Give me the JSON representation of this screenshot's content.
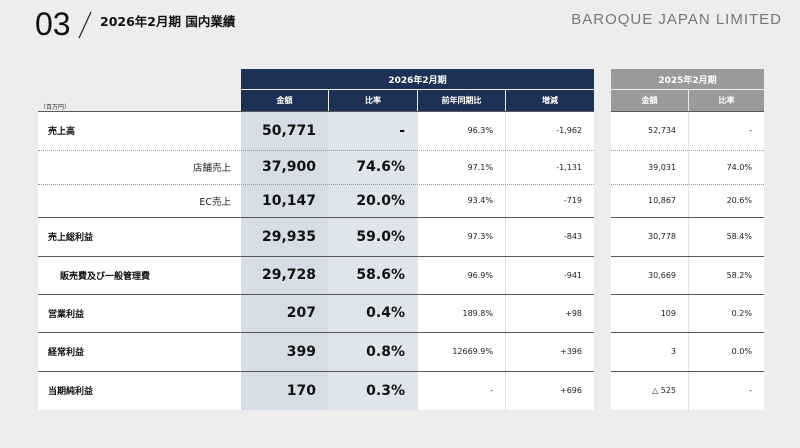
{
  "header": {
    "slide_number": "03",
    "title": "2026年2月期 国内業績",
    "company": "BAROQUE JAPAN LIMITED"
  },
  "table": {
    "unit": "（百万円）",
    "current_period": "2026年2月期",
    "previous_period": "2025年2月期",
    "columns_current": [
      "金額",
      "比率",
      "前年同期比",
      "増減"
    ],
    "columns_previous": [
      "金額",
      "比率"
    ],
    "rows": [
      {
        "label": "売上高",
        "indent": false,
        "amount": "50,771",
        "ratio": "-",
        "yoy": "96.3%",
        "change": "-1,962",
        "prev_amount": "52,734",
        "prev_ratio": "-"
      },
      {
        "label": "店舗売上",
        "indent": true,
        "amount": "37,900",
        "ratio": "74.6%",
        "yoy": "97.1%",
        "change": "-1,131",
        "prev_amount": "39,031",
        "prev_ratio": "74.0%"
      },
      {
        "label": "EC売上",
        "indent": true,
        "amount": "10,147",
        "ratio": "20.0%",
        "yoy": "93.4%",
        "change": "-719",
        "prev_amount": "10,867",
        "prev_ratio": "20.6%"
      },
      {
        "label": "売上総利益",
        "indent": false,
        "amount": "29,935",
        "ratio": "59.0%",
        "yoy": "97.3%",
        "change": "-843",
        "prev_amount": "30,778",
        "prev_ratio": "58.4%"
      },
      {
        "label": "販売費及び一般管理費",
        "indent": false,
        "amount": "29,728",
        "ratio": "58.6%",
        "yoy": "96.9%",
        "change": "-941",
        "prev_amount": "30,669",
        "prev_ratio": "58.2%"
      },
      {
        "label": "営業利益",
        "indent": false,
        "amount": "207",
        "ratio": "0.4%",
        "yoy": "189.8%",
        "change": "+98",
        "prev_amount": "109",
        "prev_ratio": "0.2%"
      },
      {
        "label": "経常利益",
        "indent": false,
        "amount": "399",
        "ratio": "0.8%",
        "yoy": "12669.9%",
        "change": "+396",
        "prev_amount": "3",
        "prev_ratio": "0.0%"
      },
      {
        "label": "当期純利益",
        "indent": false,
        "amount": "170",
        "ratio": "0.3%",
        "yoy": "-",
        "change": "+696",
        "prev_amount": "△ 525",
        "prev_ratio": "-"
      }
    ]
  },
  "colors": {
    "navy_header": "#1c3155",
    "grey_header": "#9a9a9a",
    "highlight": "#d5dde6",
    "background": "#ededed"
  }
}
